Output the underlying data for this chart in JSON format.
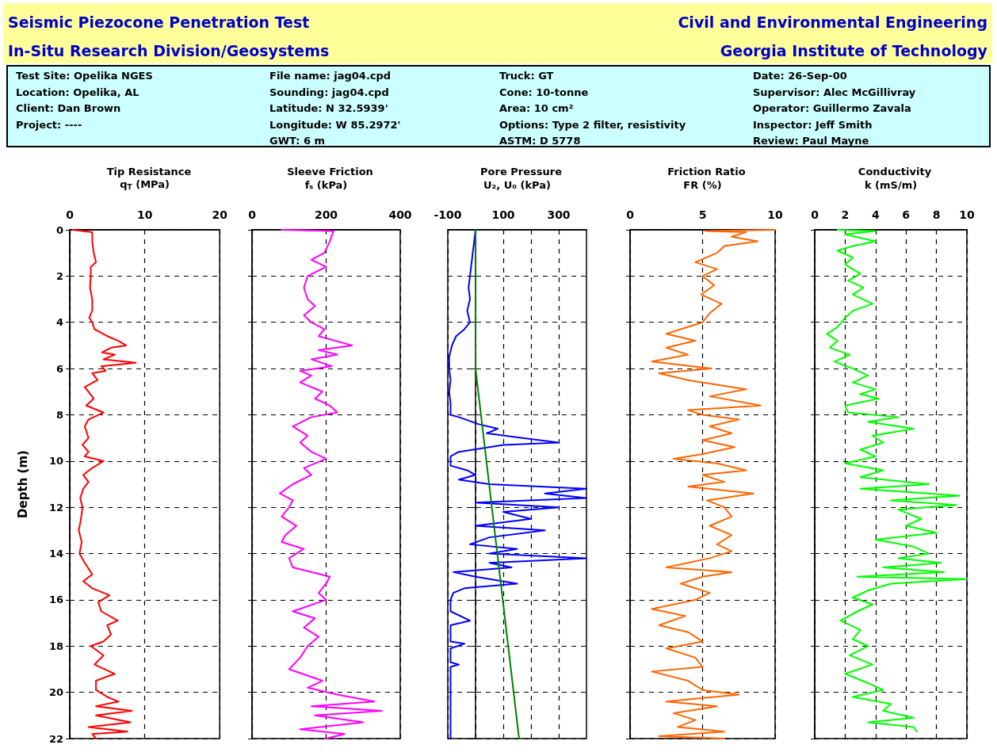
{
  "chart_data": [
    {
      "type": "other",
      "title": "Seismic Piezocone Penetration Test",
      "subtitle": "In-Situ Research Division/Geosystems",
      "annotations": [
        "Civil and Environmental Engineering",
        "Georgia Institute of Technology",
        "Test Site: Opelika NGES\nLocation: Opelika, AL\nClient: Dan Brown\nProject: ----",
        "File name: jag04.cpd\nSounding: jag04.cpd\nLatitude: N 32.5939'\nLongitude: W 85.2972'\nGWT: 6 m",
        "Truck: GT\nCone: 10-tonne\nArea: 10 cm²\nOptions: Type 2 filter, resistivity\nASTM: D 5778",
        "Date: 26-Sep-00\nSupervisor: Alec McGillivray\nOperator: Guillermo Zavala\nInspector: Jeff Smith\nReview: Paul Mayne"
      ]
    },
    {
      "type": "line",
      "title": "Tip Resistance",
      "xlabel": "q$_{T}$ (MPa)",
      "ylabel": "Depth (m)",
      "xlim": [
        0,
        20
      ],
      "xticks": [
        0,
        10,
        20
      ],
      "ylim": [
        22,
        0
      ],
      "yticks": [
        0,
        2,
        4,
        6,
        8,
        10,
        12,
        14,
        16,
        18,
        20,
        22
      ],
      "grid": true,
      "series": [
        {
          "color": "#ff0000",
          "x": [
            0.4,
            3,
            3,
            3.2,
            3.5,
            2.8,
            2.8,
            2.7,
            3,
            3,
            2.6,
            3,
            3.3,
            5,
            6.5,
            7.5,
            5.5,
            4.3,
            6,
            4.5,
            8.8,
            4.2,
            4.8,
            3,
            3.7,
            2,
            2.5,
            3.2,
            2.2,
            4.5,
            2.5,
            2,
            2.5,
            1.7,
            2.5,
            2,
            4.5,
            3,
            1.8,
            2.5,
            1.8,
            1.4,
            1.7,
            1.5,
            1.2,
            1.6,
            1.3,
            2,
            3,
            1.8,
            3,
            5.3,
            3.8,
            4.2,
            6.4,
            5,
            5.5,
            4.5,
            2.8,
            4.5,
            3.3,
            6,
            3.5,
            3.5,
            5,
            6.5,
            3.5,
            8.3,
            3.5,
            8.1,
            2.5,
            7.7,
            3,
            3.5
          ],
          "values": [
            0,
            0.1,
            0.5,
            1.0,
            1.4,
            1.6,
            2,
            2.5,
            3,
            3.5,
            3.8,
            4.0,
            4.3,
            4.6,
            4.8,
            5.0,
            5.1,
            5.3,
            5.4,
            5.6,
            5.75,
            5.9,
            6.1,
            6.2,
            6.5,
            6.8,
            7.0,
            7.3,
            7.6,
            7.9,
            8.2,
            8.5,
            9.0,
            9.3,
            9.6,
            9.8,
            10.0,
            10.3,
            10.6,
            10.9,
            11.2,
            11.6,
            12,
            12.5,
            13,
            13.5,
            14,
            14.4,
            14.9,
            15.2,
            15.5,
            15.8,
            16.1,
            16.5,
            16.9,
            17.1,
            17.5,
            17.8,
            18,
            18.4,
            18.8,
            19.2,
            19.5,
            19.9,
            20.2,
            20.4,
            20.6,
            20.8,
            21.0,
            21.3,
            21.5,
            21.7,
            21.8,
            22
          ]
        }
      ]
    },
    {
      "type": "line",
      "title": "Sleeve Friction",
      "xlabel": "fₛ (kPa)",
      "xlim": [
        0,
        400
      ],
      "xticks": [
        0,
        200,
        400
      ],
      "ylim": [
        22,
        0
      ],
      "yticks": [
        0,
        2,
        4,
        6,
        8,
        10,
        12,
        14,
        16,
        18,
        20,
        22
      ],
      "grid": true,
      "tick_labels": "x",
      "series": [
        {
          "color": "#ff00ff",
          "x": [
            80,
            220,
            210,
            195,
            160,
            200,
            150,
            140,
            150,
            170,
            140,
            160,
            195,
            180,
            270,
            180,
            230,
            160,
            215,
            130,
            160,
            130,
            190,
            170,
            210,
            230,
            160,
            110,
            150,
            130,
            160,
            200,
            140,
            160,
            110,
            75,
            110,
            100,
            80,
            120,
            90,
            80,
            140,
            100,
            110,
            210,
            200,
            180,
            200,
            110,
            170,
            140,
            180,
            150,
            130,
            100,
            190,
            150,
            230,
            330,
            160,
            350,
            170,
            300,
            130,
            250,
            200
          ],
          "values": [
            0,
            0.05,
            0.5,
            1.0,
            1.3,
            1.6,
            2,
            2.5,
            3,
            3.3,
            3.7,
            4,
            4.3,
            4.6,
            5,
            5.2,
            5.4,
            5.6,
            5.9,
            6.1,
            6.3,
            6.6,
            7,
            7.3,
            7.6,
            7.9,
            8.1,
            8.5,
            8.9,
            9.2,
            9.6,
            9.9,
            10.3,
            10.6,
            11,
            11.4,
            11.7,
            12,
            12.4,
            12.8,
            13.2,
            13.5,
            13.8,
            14.2,
            14.6,
            15,
            15.3,
            15.7,
            16,
            16.5,
            16.8,
            17.2,
            17.6,
            18,
            18.5,
            19,
            19.5,
            19.8,
            20.1,
            20.4,
            20.6,
            20.8,
            21.0,
            21.3,
            21.6,
            21.8,
            22
          ]
        }
      ]
    },
    {
      "type": "line",
      "title": "Pore Pressure",
      "xlabel": "U₂, U₀ (kPa)",
      "xlim": [
        -100,
        400
      ],
      "xticks": [
        -100,
        {
          "value": 0,
          "label": null
        },
        100,
        {
          "value": 200,
          "label": null
        },
        300
      ],
      "ylim": [
        22,
        0
      ],
      "yticks": [
        0,
        2,
        4,
        6,
        8,
        10,
        12,
        14,
        16,
        18,
        20,
        22
      ],
      "grid": true,
      "tick_labels": "x",
      "series": [
        {
          "color": "#0000ff",
          "x": [
            0,
            -5,
            -10,
            -15,
            -20,
            -25,
            -20,
            -30,
            -20,
            -40,
            -70,
            -85,
            -95,
            -95,
            -90,
            -95,
            -90,
            -90,
            -60,
            10,
            80,
            40,
            170,
            300,
            100,
            -60,
            -90,
            -90,
            -30,
            0,
            -60,
            50,
            400,
            250,
            400,
            0,
            300,
            100,
            200,
            0,
            250,
            50,
            -20,
            150,
            50,
            400,
            50,
            130,
            -80,
            0,
            150,
            -40,
            -80,
            -90,
            -90,
            -20,
            -90,
            -90,
            -40,
            -90,
            -90,
            -60,
            -90,
            -90,
            -90,
            -90
          ],
          "values": [
            0,
            0.5,
            1,
            1.5,
            2,
            2.5,
            3,
            3.5,
            4,
            4.3,
            4.6,
            5,
            5.5,
            6,
            6.5,
            7,
            7.5,
            8,
            8.1,
            8.4,
            8.6,
            8.8,
            9.0,
            9.2,
            9.3,
            9.6,
            9.8,
            10.2,
            10.4,
            10.6,
            10.8,
            11.0,
            11.2,
            11.4,
            11.6,
            11.8,
            12.0,
            12.2,
            12.5,
            12.8,
            13.0,
            13.3,
            13.6,
            13.8,
            14.0,
            14.2,
            14.4,
            14.6,
            14.8,
            15.0,
            15.3,
            15.5,
            15.7,
            16.0,
            16.5,
            16.9,
            17.1,
            17.8,
            17.9,
            18.1,
            18.7,
            18.8,
            18.9,
            20,
            21,
            22
          ]
        },
        {
          "color": "#008000",
          "x": [
            0,
            0,
            157
          ],
          "values": [
            0,
            6,
            22
          ]
        }
      ]
    },
    {
      "type": "line",
      "title": "Friction Ratio",
      "xlabel": "FR (%)",
      "xlim": [
        0,
        10
      ],
      "xticks": [
        0,
        5,
        10
      ],
      "ylim": [
        22,
        0
      ],
      "yticks": [
        0,
        2,
        4,
        6,
        8,
        10,
        12,
        14,
        16,
        18,
        20,
        22
      ],
      "grid": true,
      "tick_labels": "x",
      "series": [
        {
          "color": "#ff6600",
          "x": [
            10,
            5.2,
            8,
            7,
            8.8,
            6.5,
            6,
            4.5,
            6,
            5,
            5.8,
            4.9,
            6.3,
            5.5,
            5,
            2.5,
            4.5,
            2.5,
            4,
            1.5,
            5.6,
            2,
            4,
            8,
            5.5,
            9,
            4,
            5,
            7.5,
            5.5,
            7,
            5,
            7.2,
            5,
            3,
            6,
            8,
            5,
            6.5,
            4,
            8.5,
            5.3,
            6.5,
            7,
            5.5,
            7,
            6,
            7,
            5.5,
            2.5,
            7,
            5,
            3.5,
            5.5,
            4.5,
            1.5,
            3.8,
            2,
            4,
            5,
            2.5,
            4.5,
            5,
            1.5,
            4,
            5,
            7.5,
            2.5,
            6,
            3,
            4.5,
            3.3,
            6.5,
            2,
            6.5
          ],
          "values": [
            0,
            0.05,
            0.1,
            0.3,
            0.5,
            0.7,
            1.0,
            1.4,
            1.7,
            2,
            2.4,
            2.8,
            3.2,
            3.6,
            4,
            4.5,
            4.8,
            5.1,
            5.4,
            5.7,
            6.0,
            6.2,
            6.5,
            6.9,
            7.2,
            7.6,
            7.8,
            8.0,
            8.2,
            8.5,
            8.8,
            9.1,
            9.4,
            9.7,
            9.9,
            10.1,
            10.4,
            10.6,
            10.9,
            11.1,
            11.4,
            11.7,
            12,
            12.4,
            12.8,
            13.2,
            13.6,
            13.9,
            14.2,
            14.6,
            14.8,
            15.0,
            15.3,
            15.7,
            16.0,
            16.4,
            16.7,
            17.1,
            17.4,
            17.8,
            18.1,
            18.5,
            18.9,
            19.1,
            19.5,
            19.9,
            20.1,
            20.4,
            20.6,
            20.9,
            21.2,
            21.5,
            21.7,
            21.9,
            22
          ]
        }
      ]
    },
    {
      "type": "line",
      "title": "Conductivity",
      "xlabel": "k (mS/m)",
      "xlim": [
        0,
        10
      ],
      "xticks": [
        0,
        2,
        4,
        6,
        8,
        10
      ],
      "ylim": [
        22,
        0
      ],
      "yticks": [
        0,
        2,
        4,
        6,
        8,
        10,
        12,
        14,
        16,
        18,
        20,
        22
      ],
      "grid": true,
      "tick_labels": "x",
      "series": [
        {
          "color": "#00ff00",
          "x": [
            1.5,
            4,
            2,
            4,
            2.5,
            1.5,
            2.5,
            2,
            3,
            2.2,
            3.2,
            2.5,
            3.8,
            2.5,
            2,
            1.5,
            0.8,
            1.5,
            1,
            2.3,
            1.3,
            2.5,
            3.5,
            2.5,
            4,
            3,
            4.2,
            2,
            2.2,
            5.5,
            3.5,
            6.5,
            3.8,
            4.5,
            3,
            4,
            2,
            4.5,
            3,
            7.5,
            3,
            9.5,
            5,
            9.3,
            5.5,
            7,
            6,
            8,
            4,
            6.5,
            7.5,
            5.5,
            8.3,
            4.5,
            8.5,
            2.8,
            10,
            5,
            3.5,
            2.5,
            3.8,
            2.8,
            1.7,
            3,
            2.5,
            3.5,
            2.3,
            3.8,
            2,
            3.5,
            4.5,
            2.5,
            5,
            4.5,
            6.5,
            3.5,
            6.5,
            6.7
          ],
          "values": [
            0,
            0.05,
            0.2,
            0.5,
            0.7,
            0.9,
            1.2,
            1.5,
            1.9,
            2.2,
            2.5,
            2.8,
            3.2,
            3.5,
            3.8,
            4.2,
            4.5,
            4.8,
            5.1,
            5.4,
            5.7,
            6.0,
            6.3,
            6.6,
            6.9,
            7.1,
            7.3,
            7.6,
            7.9,
            8.1,
            8.3,
            8.6,
            8.9,
            9.2,
            9.5,
            9.8,
            10.1,
            10.4,
            10.7,
            11.0,
            11.2,
            11.5,
            11.7,
            11.9,
            12.1,
            12.5,
            12.8,
            13.1,
            13.4,
            13.7,
            14.0,
            14.2,
            14.4,
            14.6,
            14.8,
            15.0,
            15.1,
            15.3,
            15.6,
            15.9,
            16.2,
            16.5,
            16.9,
            17.3,
            17.7,
            18.0,
            18.4,
            18.8,
            19.2,
            19.6,
            19.9,
            20.2,
            20.5,
            20.8,
            21.1,
            21.3,
            21.5,
            21.7
          ]
        }
      ]
    }
  ]
}
